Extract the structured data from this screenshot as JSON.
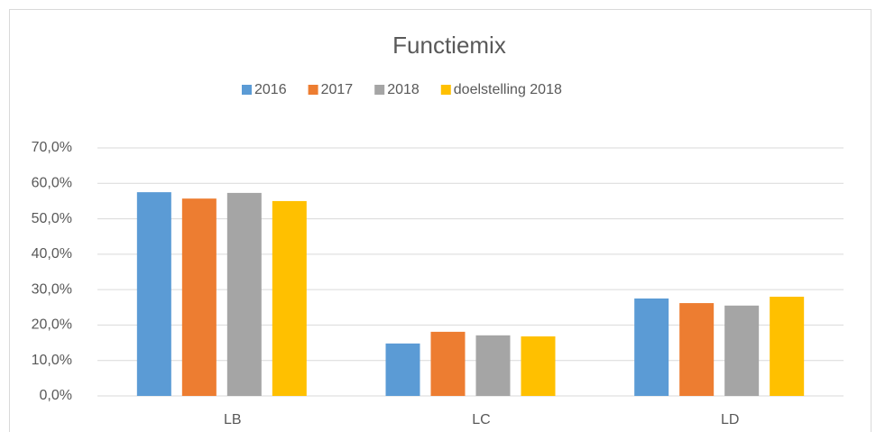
{
  "chart_data": {
    "type": "bar",
    "title": "Functiemix",
    "categories": [
      "LB",
      "LC",
      "LD"
    ],
    "series": [
      {
        "name": "2016",
        "color": "#5b9bd5",
        "values": [
          57.5,
          14.8,
          27.5
        ]
      },
      {
        "name": "2017",
        "color": "#ed7d31",
        "values": [
          55.7,
          18.1,
          26.2
        ]
      },
      {
        "name": "2018",
        "color": "#a5a5a5",
        "values": [
          57.3,
          17.1,
          25.5
        ]
      },
      {
        "name": "doelstelling 2018",
        "color": "#ffc000",
        "values": [
          55.0,
          16.8,
          28.0
        ]
      }
    ],
    "ylim": [
      0,
      70
    ],
    "yticks": [
      {
        "value": 0,
        "label": "0,0%"
      },
      {
        "value": 10,
        "label": "10,0%"
      },
      {
        "value": 20,
        "label": "20,0%"
      },
      {
        "value": 30,
        "label": "30,0%"
      },
      {
        "value": 40,
        "label": "40,0%"
      },
      {
        "value": 50,
        "label": "50,0%"
      },
      {
        "value": 60,
        "label": "60,0%"
      },
      {
        "value": 70,
        "label": "70,0%"
      }
    ],
    "grid": true,
    "legend": "top"
  }
}
